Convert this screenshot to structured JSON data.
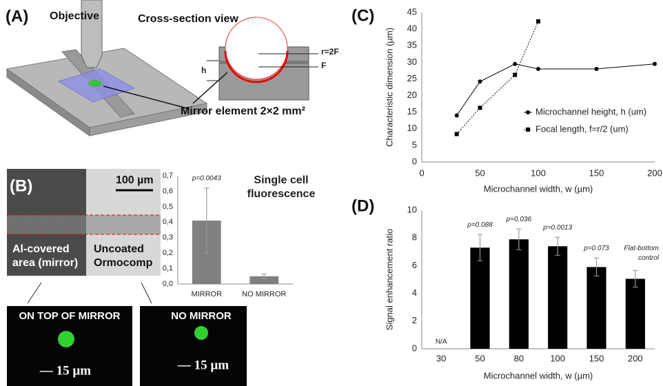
{
  "panels": {
    "a": {
      "label": "(A)",
      "objective": "Objective",
      "cross_section": "Cross-section view",
      "r_label": "r=2F",
      "f_label": "F",
      "h_label": "h",
      "mirror_label": "Mirror element 2×2 mm²"
    },
    "b": {
      "label": "(B)",
      "scale": "100 µm",
      "left_text": [
        "Al-covered",
        "area (mirror)"
      ],
      "right_text": [
        "Uncoated",
        "Ormocomp"
      ]
    },
    "images": [
      {
        "title": "ON TOP OF MIRROR",
        "scale": "— 15 µm"
      },
      {
        "title": "NO MIRROR",
        "scale": "— 15 µm"
      }
    ],
    "c": {
      "label": "(C)"
    },
    "d": {
      "label": "(D)"
    }
  },
  "chart_data": [
    {
      "type": "bar",
      "title": [
        "Single cell",
        "fluorescence"
      ],
      "categories": [
        "MIRROR",
        "NO MIRROR"
      ],
      "values": [
        0.41,
        0.05
      ],
      "errors": [
        0.21,
        0.015
      ],
      "annotations": [
        "p=0.0043",
        null
      ],
      "color": "#808080",
      "ylim": [
        0,
        0.7
      ],
      "yticks": [
        {
          "value": 0,
          "label": "0,0"
        },
        {
          "value": 0.1,
          "label": "0,1"
        },
        {
          "value": 0.2,
          "label": "0,2"
        },
        {
          "value": 0.3,
          "label": "0,3"
        },
        {
          "value": 0.4,
          "label": "0,4"
        },
        {
          "value": 0.5,
          "label": "0,5"
        },
        {
          "value": 0.6,
          "label": "0,6"
        },
        {
          "value": 0.7,
          "label": "0,7"
        }
      ],
      "grid": false
    },
    {
      "type": "line",
      "x": [
        30,
        50,
        80,
        100,
        150,
        200
      ],
      "series": [
        {
          "name": "Microchannel height, h (um)",
          "color": "#000000",
          "marker": "circle",
          "line_style": "solid",
          "values": [
            14,
            24.2,
            29.5,
            28,
            28,
            29.5
          ]
        },
        {
          "name": "Focal length, f=r/2 (um)",
          "color": "#000000",
          "marker": "square",
          "line_style": "dotted",
          "values": [
            8.4,
            16.3,
            26.2,
            42.3,
            null,
            null
          ]
        }
      ],
      "xlim": [
        0,
        200
      ],
      "xticks": [
        0,
        50,
        100,
        150,
        200
      ],
      "ylim": [
        0,
        45
      ],
      "yticks": [
        0,
        5,
        10,
        15,
        20,
        25,
        30,
        35,
        40,
        45
      ],
      "xlabel": "Microchannel width, w (µm)",
      "ylabel": "Characteristic dimension (µm)",
      "grid": false
    },
    {
      "type": "bar",
      "categories": [
        "30",
        "50",
        "80",
        "100",
        "150",
        "200"
      ],
      "values": [
        null,
        7.3,
        7.9,
        7.4,
        5.9,
        5.05
      ],
      "errors": [
        null,
        0.95,
        0.75,
        0.65,
        0.65,
        0.6
      ],
      "annotations": [
        "N/A",
        "p=0.088",
        "p=0.036",
        "p=0.0013",
        "p=0.073",
        [
          "Flat-bottom",
          "control"
        ]
      ],
      "color": "#000000",
      "ylim": [
        0,
        10
      ],
      "yticks": [
        0,
        2,
        4,
        6,
        8,
        10
      ],
      "xlabel": "Microchannel width, w (µm)",
      "ylabel": "Signal enhancement ratio",
      "grid": false
    }
  ]
}
